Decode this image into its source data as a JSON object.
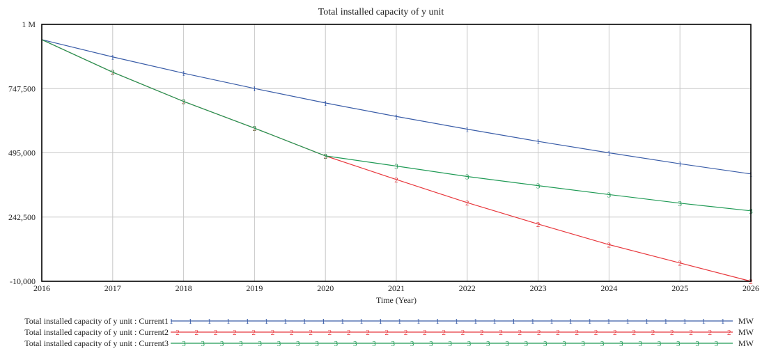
{
  "chart_data": {
    "type": "line",
    "title": "Total installed capacity of y unit",
    "xlabel": "Time (Year)",
    "ylabel": "",
    "x": [
      2016,
      2017,
      2018,
      2019,
      2020,
      2021,
      2022,
      2023,
      2024,
      2025,
      2026
    ],
    "xlim": [
      2016,
      2026
    ],
    "ylim": [
      -10000,
      1000000
    ],
    "y_ticks": [
      1000000,
      747500,
      495000,
      242500,
      -10000
    ],
    "y_tick_labels": [
      "1 M",
      "747,500",
      "495,000",
      "242,500",
      "-10,000"
    ],
    "x_tick_labels": [
      "2016",
      "2017",
      "2018",
      "2019",
      "2020",
      "2021",
      "2022",
      "2023",
      "2024",
      "2025",
      "2026"
    ],
    "grid": true,
    "series": [
      {
        "name": "Total installed capacity of y unit : Current1",
        "marker": "1",
        "unit": "MW",
        "color": "#3a5da8",
        "values": [
          940000,
          872000,
          808000,
          748000,
          691000,
          638000,
          588000,
          540000,
          495000,
          452000,
          412000
        ]
      },
      {
        "name": "Total installed capacity of y unit : Current2",
        "marker": "2",
        "unit": "MW",
        "color": "#e8383d",
        "values": [
          940000,
          812000,
          697000,
          592000,
          483000,
          390000,
          299000,
          215000,
          134000,
          62000,
          -10000
        ]
      },
      {
        "name": "Total installed capacity of y unit : Current3",
        "marker": "3",
        "unit": "MW",
        "color": "#1f9a55",
        "values": [
          940000,
          812000,
          697000,
          592000,
          483000,
          443000,
          402000,
          366000,
          331000,
          297000,
          267000
        ]
      }
    ]
  }
}
